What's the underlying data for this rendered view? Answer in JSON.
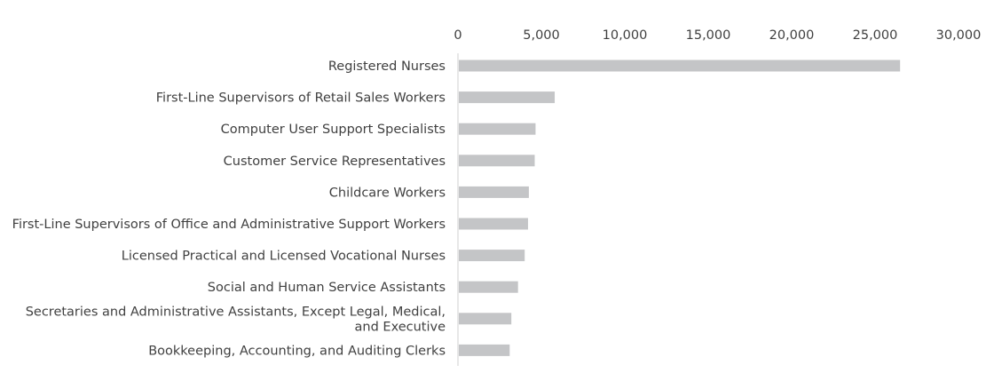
{
  "chart_data": {
    "type": "bar",
    "orientation": "horizontal",
    "title": "",
    "xlabel": "",
    "ylabel": "",
    "xlim": [
      0,
      30000
    ],
    "x_axis_position": "top",
    "grid": false,
    "bar_color": "#c4c5c7",
    "tick_labels": [
      "0",
      "5,000",
      "10,000",
      "15,000",
      "20,000",
      "25,000",
      "30,000"
    ],
    "tick_values": [
      0,
      5000,
      10000,
      15000,
      20000,
      25000,
      30000
    ],
    "categories": [
      "Registered Nurses",
      "First-Line Supervisors of Retail Sales Workers",
      "Computer User Support Specialists",
      "Customer Service Representatives",
      "Childcare Workers",
      "First-Line Supervisors of Office and Administrative Support Workers",
      "Licensed Practical and Licensed Vocational Nurses",
      "Social and Human Service Assistants",
      [
        "Secretaries and Administrative Assistants, Except Legal, Medical,",
        "and Executive"
      ],
      "Bookkeeping, Accounting, and Auditing Clerks"
    ],
    "values": [
      26500,
      5800,
      4650,
      4600,
      4250,
      4200,
      4000,
      3600,
      3200,
      3100
    ]
  }
}
